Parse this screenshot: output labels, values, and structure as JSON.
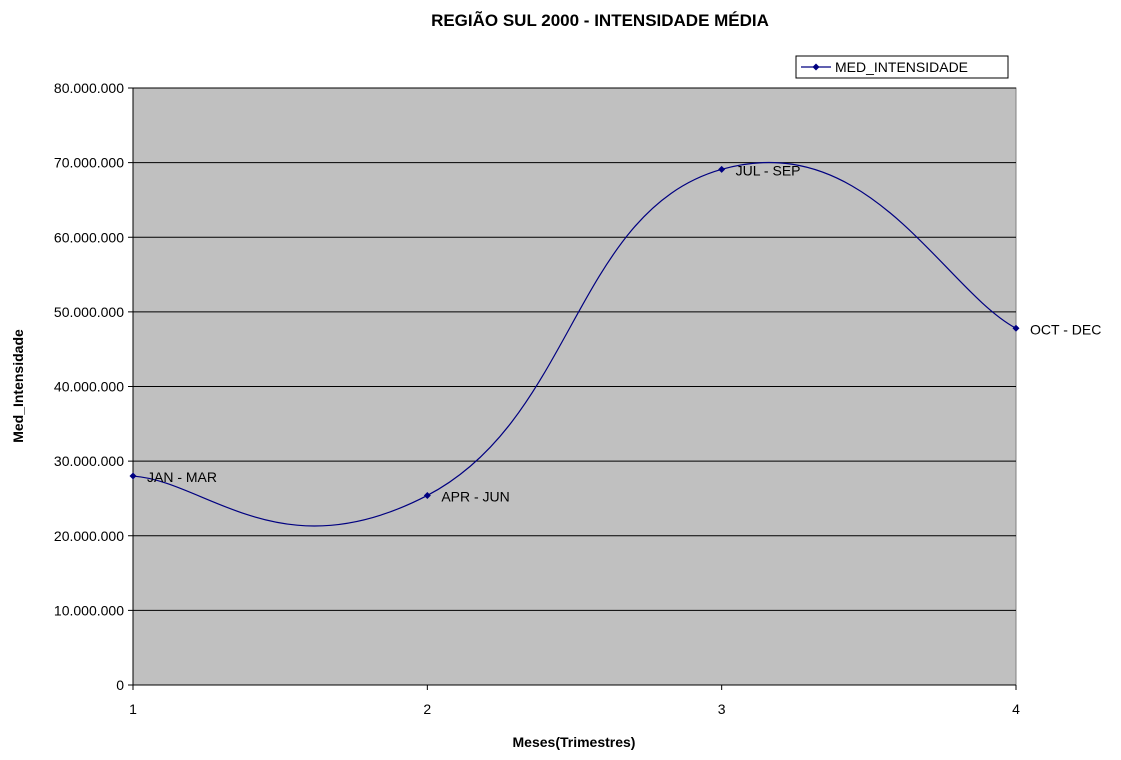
{
  "chart_data": {
    "type": "line",
    "title": "REGIÃO SUL 2000 - INTENSIDADE MÉDIA",
    "xlabel": "Meses(Trimestres)",
    "ylabel": "Med_Intensidade",
    "x": [
      1,
      2,
      3,
      4
    ],
    "xlim": [
      1,
      4
    ],
    "ylim": [
      0,
      80000000
    ],
    "yticks": [
      0,
      10000000,
      20000000,
      30000000,
      40000000,
      50000000,
      60000000,
      70000000,
      80000000
    ],
    "ytick_labels": [
      "0",
      "10.000.000",
      "20.000.000",
      "30.000.000",
      "40.000.000",
      "50.000.000",
      "60.000.000",
      "70.000.000",
      "80.000.000"
    ],
    "xtick_labels": [
      "1",
      "2",
      "3",
      "4"
    ],
    "smoothed": true,
    "grid": true,
    "plot_background": "#c0c0c0",
    "legend_position": "top-right",
    "series": [
      {
        "name": "MED_INTENSIDADE",
        "color": "#000080",
        "values": [
          28000000,
          25400000,
          69100000,
          47800000
        ],
        "point_labels": [
          "JAN - MAR",
          "APR - JUN",
          "JUL - SEP",
          "OCT - DEC"
        ]
      }
    ]
  }
}
